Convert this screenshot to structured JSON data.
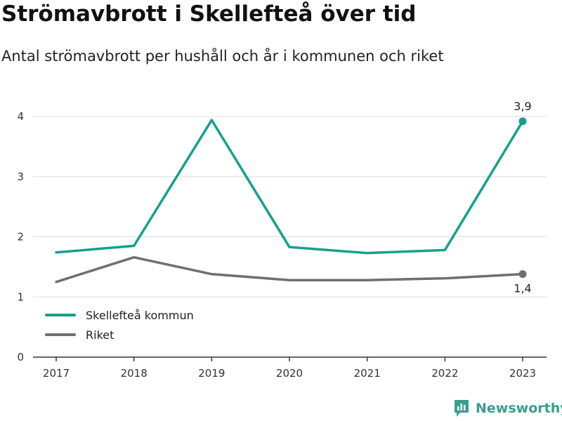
{
  "chart_data": {
    "type": "line",
    "title": "Strömavbrott i Skellefteå över tid",
    "subtitle": "Antal strömavbrott per hushåll och år i kommunen och riket",
    "x": [
      "2017",
      "2018",
      "2019",
      "2020",
      "2021",
      "2022",
      "2023"
    ],
    "ylim": [
      0,
      4.1
    ],
    "yticks": [
      "0",
      "1",
      "2",
      "3",
      "4"
    ],
    "grid": true,
    "legend_position": "bottom-left",
    "series": [
      {
        "name": "Skellefteå kommun",
        "color": "#14a08f",
        "values": [
          1.74,
          1.85,
          3.94,
          1.83,
          1.73,
          1.78,
          3.92
        ],
        "end_label": "3,9"
      },
      {
        "name": "Riket",
        "color": "#6e6e73",
        "values": [
          1.25,
          1.66,
          1.38,
          1.28,
          1.28,
          1.31,
          1.38
        ],
        "end_label": "1,4"
      }
    ]
  },
  "brand": {
    "name": "Newsworthy",
    "color": "#3a9e8e",
    "icon": "bar-chart-icon"
  }
}
